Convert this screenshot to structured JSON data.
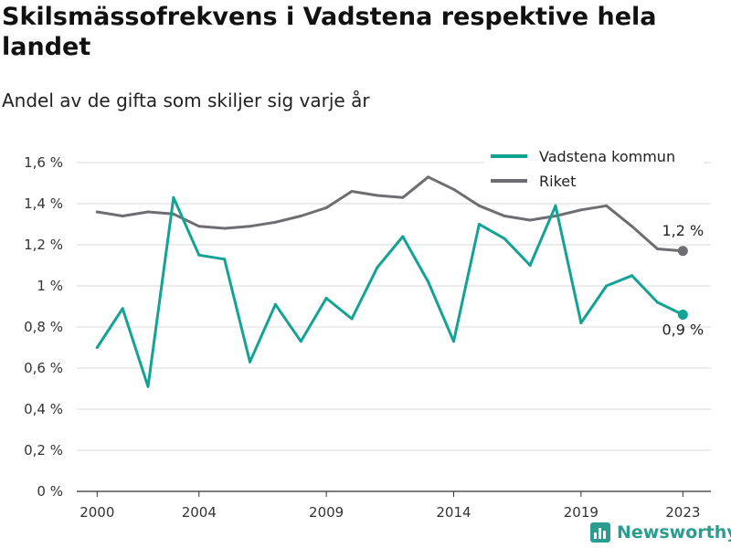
{
  "header": {
    "title": "Skilsmässofrekvens i Vadstena respektive hela landet",
    "subtitle": "Andel av de gifta som skiljer sig varje år"
  },
  "brand": {
    "name": "Newsworthy",
    "icon": "newsworthy-logo-icon",
    "color": "#2a9d90"
  },
  "chart_data": {
    "type": "line",
    "x": [
      2000,
      2001,
      2002,
      2003,
      2004,
      2005,
      2006,
      2007,
      2008,
      2009,
      2010,
      2011,
      2012,
      2013,
      2014,
      2015,
      2016,
      2017,
      2018,
      2019,
      2020,
      2021,
      2022,
      2023
    ],
    "x_ticks": [
      2000,
      2004,
      2009,
      2014,
      2019,
      2023
    ],
    "x_tick_labels": [
      "2000",
      "2004",
      "2009",
      "2014",
      "2019",
      "2023"
    ],
    "xlim": [
      1999.2,
      2024.1
    ],
    "ylim": [
      0,
      1.6
    ],
    "y_ticks": [
      0,
      0.2,
      0.4,
      0.6,
      0.8,
      1.0,
      1.2,
      1.4,
      1.6
    ],
    "y_tick_labels": [
      "0 %",
      "0,2 %",
      "0,4 %",
      "0,6 %",
      "0,8 %",
      "1 %",
      "1,2 %",
      "1,4 %",
      "1,6 %"
    ],
    "grid": true,
    "legend_position": "top-right",
    "series": [
      {
        "name": "Vadstena kommun",
        "color": "#13a394",
        "values": [
          0.7,
          0.89,
          0.51,
          1.43,
          1.15,
          1.13,
          0.63,
          0.91,
          0.73,
          0.94,
          0.84,
          1.09,
          1.24,
          1.02,
          0.73,
          1.3,
          1.23,
          1.1,
          1.39,
          0.82,
          1.0,
          1.05,
          0.92,
          0.86
        ],
        "end_label": "0,9 %"
      },
      {
        "name": "Riket",
        "color": "#6e6d72",
        "values": [
          1.36,
          1.34,
          1.36,
          1.35,
          1.29,
          1.28,
          1.29,
          1.31,
          1.34,
          1.38,
          1.46,
          1.44,
          1.43,
          1.53,
          1.47,
          1.39,
          1.34,
          1.32,
          1.34,
          1.37,
          1.39,
          1.29,
          1.18,
          1.17
        ],
        "end_label": "1,2 %"
      }
    ]
  }
}
